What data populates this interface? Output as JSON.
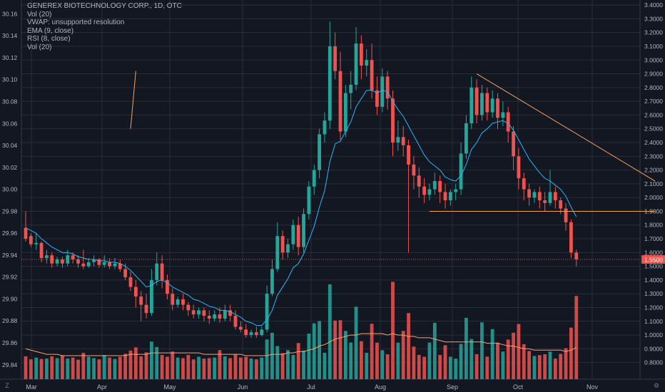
{
  "legend": {
    "title": "GENEREX BIOTECHNOLOGY CORP., 1D, OTC",
    "line2": "Vol (20)",
    "line3": "VWAP: unsupported resolution",
    "line4": "EMA (9, close)",
    "line5": "RSI (8, close)",
    "line6": "Vol (20)"
  },
  "corner": {
    "left": "Z",
    "right": "⚙"
  },
  "price_badge": "1.5500",
  "colors": {
    "background": "#131722",
    "grid": "#2a2e39",
    "axis_text": "#b2b5be",
    "up": "#26a69a",
    "down": "#ef5350",
    "ema": "#29b6f6",
    "trendline": "#f7a35c",
    "vol_ma": "#ff9e6e",
    "badge": "#ef5350"
  },
  "chart_data": {
    "type": "candlestick",
    "title": "GENEREX BIOTECHNOLOGY CORP., 1D, OTC",
    "x_labels": [
      "Mar",
      "Apr",
      "May",
      "Jun",
      "Jul",
      "Aug",
      "Sep",
      "Oct",
      "Nov"
    ],
    "left_axis": {
      "ticks": [
        "30.16",
        "30.14",
        "30.12",
        "30.10",
        "30.08",
        "30.06",
        "30.04",
        "30.02",
        "30.00",
        "29.98",
        "29.96",
        "29.94",
        "29.92",
        "29.90",
        "29.88",
        "29.86",
        "29.84"
      ],
      "range": [
        29.834,
        30.17
      ]
    },
    "right_axis": {
      "ticks": [
        "3.4000",
        "3.3000",
        "3.2000",
        "3.1000",
        "3.0000",
        "2.9000",
        "2.8000",
        "2.7000",
        "2.6000",
        "2.5000",
        "2.4000",
        "2.3000",
        "2.2000",
        "2.1000",
        "2.0000",
        "1.9000",
        "1.8000",
        "1.7000",
        "1.6000",
        "1.5000",
        "1.4000",
        "1.3000",
        "1.2000",
        "1.1000",
        "1.0000",
        "0.9000",
        "0.8000"
      ],
      "range": [
        0.736,
        3.416
      ]
    },
    "last_price": 1.55,
    "grid": true,
    "ohlc_price_scale": "right",
    "ohlc": [
      [
        1.78,
        1.9,
        1.7,
        1.68
      ],
      [
        1.72,
        1.74,
        1.66,
        1.64
      ],
      [
        1.66,
        1.74,
        1.67,
        1.62
      ],
      [
        1.67,
        1.68,
        1.56,
        1.53
      ],
      [
        1.56,
        1.62,
        1.58,
        1.52
      ],
      [
        1.58,
        1.6,
        1.52,
        1.49
      ],
      [
        1.52,
        1.57,
        1.55,
        1.5
      ],
      [
        1.55,
        1.57,
        1.52,
        1.49
      ],
      [
        1.52,
        1.62,
        1.58,
        1.5
      ],
      [
        1.58,
        1.6,
        1.55,
        1.52
      ],
      [
        1.55,
        1.58,
        1.52,
        1.49
      ],
      [
        1.52,
        1.62,
        1.5,
        1.48
      ],
      [
        1.5,
        1.56,
        1.53,
        1.49
      ],
      [
        1.53,
        1.58,
        1.55,
        1.5
      ],
      [
        1.55,
        1.56,
        1.51,
        1.49
      ],
      [
        1.51,
        1.58,
        1.53,
        1.49
      ],
      [
        1.53,
        1.56,
        1.5,
        1.48
      ],
      [
        1.5,
        1.56,
        1.52,
        1.48
      ],
      [
        1.52,
        1.55,
        1.48,
        1.46
      ],
      [
        1.48,
        1.52,
        1.42,
        1.4
      ],
      [
        1.42,
        1.46,
        1.35,
        1.32
      ],
      [
        1.35,
        1.4,
        1.28,
        1.2
      ],
      [
        1.28,
        1.32,
        1.22,
        1.1
      ],
      [
        1.22,
        1.3,
        1.16,
        1.12
      ],
      [
        1.16,
        1.48,
        1.4,
        1.14
      ],
      [
        1.4,
        1.6,
        1.52,
        1.36
      ],
      [
        1.52,
        1.58,
        1.4,
        1.34
      ],
      [
        1.4,
        1.44,
        1.3,
        1.26
      ],
      [
        1.3,
        1.34,
        1.22,
        1.18
      ],
      [
        1.22,
        1.28,
        1.26,
        1.2
      ],
      [
        1.26,
        1.3,
        1.22,
        1.18
      ],
      [
        1.22,
        1.24,
        1.18,
        1.14
      ],
      [
        1.18,
        1.22,
        1.15,
        1.12
      ],
      [
        1.15,
        1.2,
        1.18,
        1.12
      ],
      [
        1.18,
        1.2,
        1.14,
        1.1
      ],
      [
        1.14,
        1.18,
        1.12,
        1.08
      ],
      [
        1.12,
        1.18,
        1.15,
        1.1
      ],
      [
        1.15,
        1.2,
        1.12,
        1.09
      ],
      [
        1.12,
        1.22,
        1.18,
        1.1
      ],
      [
        1.18,
        1.22,
        1.14,
        1.1
      ],
      [
        1.14,
        1.18,
        1.06,
        1.04
      ],
      [
        1.06,
        1.1,
        1.04,
        1.02
      ],
      [
        1.04,
        1.08,
        1.0,
        0.98
      ],
      [
        1.0,
        1.04,
        1.02,
        0.98
      ],
      [
        1.02,
        1.06,
        1.0,
        0.98
      ],
      [
        1.0,
        1.06,
        1.04,
        0.99
      ],
      [
        1.04,
        1.36,
        1.3,
        1.02
      ],
      [
        1.3,
        1.55,
        1.48,
        1.28
      ],
      [
        1.48,
        1.82,
        1.72,
        1.46
      ],
      [
        1.72,
        1.76,
        1.6,
        1.55
      ],
      [
        1.6,
        1.7,
        1.66,
        1.56
      ],
      [
        1.66,
        1.84,
        1.8,
        1.62
      ],
      [
        1.8,
        1.86,
        1.64,
        1.58
      ],
      [
        1.64,
        1.92,
        1.88,
        1.6
      ],
      [
        1.88,
        2.12,
        2.08,
        1.84
      ],
      [
        2.08,
        2.24,
        2.2,
        2.02
      ],
      [
        2.2,
        2.5,
        2.46,
        2.14
      ],
      [
        2.46,
        2.62,
        2.56,
        2.4
      ],
      [
        2.56,
        3.28,
        3.1,
        2.5
      ],
      [
        3.1,
        3.2,
        2.92,
        2.86
      ],
      [
        2.92,
        3.06,
        2.48,
        2.42
      ],
      [
        2.48,
        2.82,
        2.76,
        2.44
      ],
      [
        2.76,
        2.92,
        2.82,
        2.64
      ],
      [
        2.82,
        3.24,
        3.12,
        2.78
      ],
      [
        3.12,
        3.18,
        2.96,
        2.86
      ],
      [
        2.96,
        3.08,
        3.0,
        2.88
      ],
      [
        3.0,
        3.12,
        2.78,
        2.72
      ],
      [
        2.78,
        2.88,
        2.66,
        2.6
      ],
      [
        2.66,
        2.94,
        2.88,
        2.62
      ],
      [
        2.88,
        2.92,
        2.72,
        2.64
      ],
      [
        2.72,
        2.78,
        2.4,
        2.3
      ],
      [
        2.4,
        2.56,
        2.44,
        2.34
      ],
      [
        2.44,
        2.52,
        2.38,
        2.3
      ],
      [
        2.38,
        2.42,
        2.24,
        1.6
      ],
      [
        2.24,
        2.3,
        2.16,
        2.06
      ],
      [
        2.16,
        2.22,
        2.08,
        2.0
      ],
      [
        2.08,
        2.14,
        2.02,
        1.96
      ],
      [
        2.02,
        2.1,
        2.06,
        1.98
      ],
      [
        2.06,
        2.18,
        2.12,
        2.02
      ],
      [
        2.12,
        2.16,
        2.04,
        1.96
      ],
      [
        2.04,
        2.1,
        1.98,
        1.92
      ],
      [
        1.98,
        2.06,
        2.04,
        1.94
      ],
      [
        2.04,
        2.1,
        2.06,
        1.98
      ],
      [
        2.06,
        2.4,
        2.32,
        2.02
      ],
      [
        2.32,
        2.6,
        2.54,
        2.28
      ],
      [
        2.54,
        2.88,
        2.8,
        2.5
      ],
      [
        2.8,
        2.86,
        2.6,
        2.54
      ],
      [
        2.6,
        2.82,
        2.76,
        2.56
      ],
      [
        2.76,
        2.8,
        2.62,
        2.56
      ],
      [
        2.62,
        2.78,
        2.72,
        2.58
      ],
      [
        2.72,
        2.76,
        2.58,
        2.5
      ],
      [
        2.58,
        2.7,
        2.62,
        2.52
      ],
      [
        2.62,
        2.66,
        2.48,
        2.4
      ],
      [
        2.48,
        2.52,
        2.3,
        2.2
      ],
      [
        2.3,
        2.36,
        2.14,
        2.06
      ],
      [
        2.14,
        2.18,
        2.06,
        1.98
      ],
      [
        2.06,
        2.1,
        2.0,
        1.94
      ],
      [
        2.0,
        2.06,
        2.04,
        1.96
      ],
      [
        2.04,
        2.08,
        1.98,
        1.92
      ],
      [
        1.98,
        2.04,
        1.96,
        1.9
      ],
      [
        1.96,
        2.2,
        2.04,
        1.94
      ],
      [
        2.04,
        2.08,
        1.98,
        1.92
      ],
      [
        1.98,
        2.0,
        1.92,
        1.88
      ],
      [
        1.92,
        1.96,
        1.82,
        1.76
      ],
      [
        1.82,
        1.84,
        1.6,
        1.56
      ],
      [
        1.6,
        1.62,
        1.55,
        1.5
      ]
    ],
    "ema_9": [
      1.78,
      1.76,
      1.74,
      1.7,
      1.67,
      1.64,
      1.62,
      1.6,
      1.6,
      1.59,
      1.57,
      1.56,
      1.55,
      1.55,
      1.54,
      1.54,
      1.53,
      1.53,
      1.52,
      1.5,
      1.47,
      1.43,
      1.39,
      1.35,
      1.36,
      1.39,
      1.4,
      1.38,
      1.35,
      1.33,
      1.31,
      1.29,
      1.26,
      1.25,
      1.23,
      1.21,
      1.2,
      1.18,
      1.18,
      1.17,
      1.15,
      1.13,
      1.1,
      1.09,
      1.07,
      1.07,
      1.11,
      1.18,
      1.29,
      1.35,
      1.41,
      1.49,
      1.52,
      1.59,
      1.69,
      1.79,
      1.93,
      2.05,
      2.26,
      2.39,
      2.41,
      2.48,
      2.55,
      2.66,
      2.72,
      2.78,
      2.78,
      2.76,
      2.78,
      2.77,
      2.7,
      2.64,
      2.59,
      2.52,
      2.45,
      2.38,
      2.31,
      2.26,
      2.23,
      2.2,
      2.15,
      2.13,
      2.12,
      2.16,
      2.24,
      2.35,
      2.4,
      2.47,
      2.5,
      2.54,
      2.55,
      2.56,
      2.54,
      2.49,
      2.42,
      2.35,
      2.28,
      2.23,
      2.18,
      2.14,
      2.12,
      2.09,
      2.06,
      2.01,
      1.93,
      1.86
    ],
    "volume": [
      0.845,
      0.823,
      0.836,
      0.826,
      0.829,
      0.845,
      0.832,
      0.851,
      0.829,
      0.836,
      0.821,
      0.87,
      0.842,
      0.832,
      0.823,
      0.855,
      0.836,
      0.826,
      0.842,
      0.864,
      0.887,
      0.91,
      0.845,
      0.874,
      0.952,
      0.913,
      0.855,
      0.842,
      0.88,
      0.836,
      0.832,
      0.855,
      0.823,
      0.842,
      0.829,
      0.832,
      0.836,
      0.89,
      0.845,
      0.832,
      0.861,
      0.836,
      0.842,
      0.829,
      0.823,
      0.836,
      0.968,
      1.017,
      0.92,
      0.868,
      0.89,
      0.855,
      0.942,
      0.887,
      1.01,
      1.085,
      1.102,
      0.871,
      1.369,
      1.105,
      1.108,
      1.03,
      0.946,
      1.206,
      0.955,
      0.871,
      1.082,
      0.945,
      0.89,
      0.86,
      1.387,
      0.945,
      1.03,
      1.16,
      0.916,
      0.855,
      0.842,
      0.945,
      1.089,
      0.855,
      0.926,
      0.842,
      0.828,
      0.935,
      1.125,
      0.971,
      0.861,
      1.092,
      0.843,
      1.043,
      0.945,
      0.88,
      0.967,
      1.017,
      1.08,
      0.933,
      0.884,
      0.848,
      0.854,
      0.86,
      0.879,
      0.829,
      0.863,
      0.904,
      1.054,
      1.284
    ],
    "vol_ma_20": [
      0.9,
      0.89,
      0.88,
      0.87,
      0.86,
      0.86,
      0.86,
      0.85,
      0.85,
      0.85,
      0.85,
      0.85,
      0.85,
      0.85,
      0.85,
      0.85,
      0.85,
      0.85,
      0.85,
      0.85,
      0.86,
      0.86,
      0.86,
      0.86,
      0.87,
      0.87,
      0.87,
      0.87,
      0.87,
      0.87,
      0.87,
      0.87,
      0.87,
      0.87,
      0.86,
      0.86,
      0.86,
      0.86,
      0.86,
      0.86,
      0.86,
      0.86,
      0.85,
      0.85,
      0.85,
      0.85,
      0.85,
      0.86,
      0.86,
      0.86,
      0.87,
      0.87,
      0.88,
      0.88,
      0.89,
      0.9,
      0.92,
      0.93,
      0.95,
      0.97,
      0.98,
      0.99,
      1.0,
      1.0,
      1.01,
      1.01,
      1.01,
      1.01,
      1.01,
      1.0,
      1.01,
      1.0,
      1.0,
      0.99,
      0.99,
      0.98,
      0.98,
      0.98,
      0.97,
      0.96,
      0.95,
      0.95,
      0.95,
      0.95,
      0.95,
      0.95,
      0.95,
      0.95,
      0.94,
      0.94,
      0.94,
      0.93,
      0.92,
      0.92,
      0.91,
      0.9,
      0.9,
      0.89,
      0.89,
      0.89,
      0.89,
      0.89,
      0.89,
      0.88,
      0.89,
      0.91
    ],
    "trendlines": [
      {
        "name": "downtrend",
        "from": {
          "bar": 86,
          "price": 2.9
        },
        "to": {
          "bar": 120,
          "price": 2.12
        }
      },
      {
        "name": "support",
        "from": {
          "bar": 77,
          "price": 1.9
        },
        "to": {
          "bar": 120,
          "price": 1.9
        }
      },
      {
        "name": "drawing",
        "from": {
          "bar": 20,
          "price": 2.5
        },
        "to": {
          "bar": 21,
          "price": 2.92
        }
      }
    ]
  }
}
